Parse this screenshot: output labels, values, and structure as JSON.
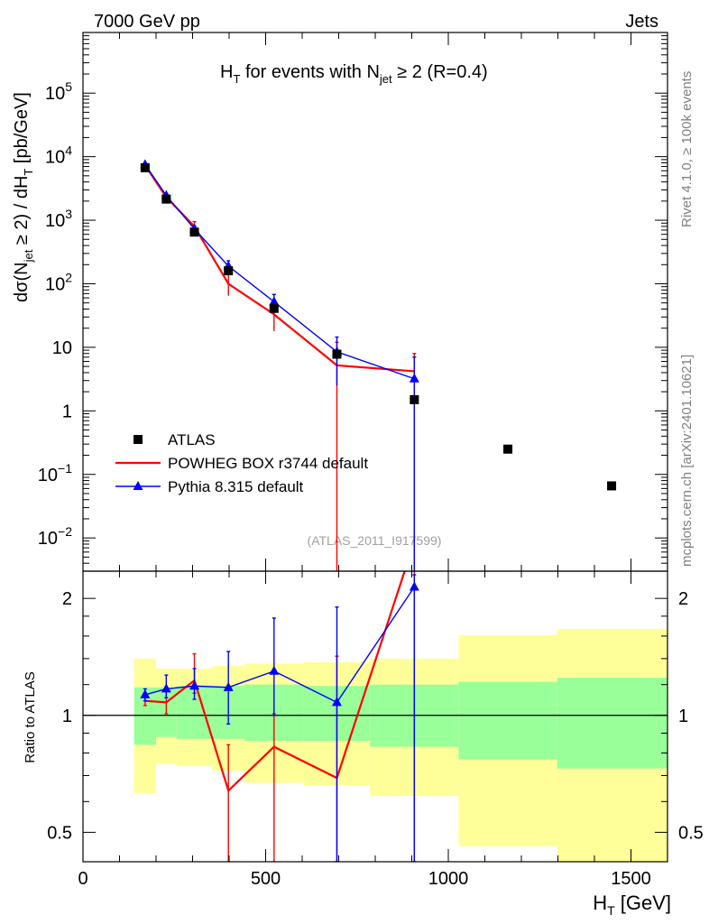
{
  "header": {
    "left_label": "7000 GeV pp",
    "right_label": "Jets"
  },
  "side_labels": {
    "rivet": "Rivet 4.1.0, ≥ 100k events",
    "mcplots": "mcplots.cern.ch [arXiv:2401.10621]"
  },
  "colors": {
    "atlas": "#000000",
    "powheg": "#ff0000",
    "pythia": "#0000ff",
    "band_inner": "#99ff99",
    "band_outer": "#ffff99",
    "analysis_label": "#a0a0a0"
  },
  "chart_data": [
    {
      "type": "scatter",
      "panel": "main",
      "title": "H_T for events with N_jet ≥ 2 (R=0.4)",
      "title_parts": {
        "h": "H",
        "t_sub": "T",
        "mid": " for events with N",
        "jet_sub": "jet",
        "tail": " ≥ 2 (R=0.4)"
      },
      "ylabel_parts": {
        "a": "dσ(N",
        "jet_sub": "jet",
        "b": " ≥ 2) / dH",
        "t_sub": "T",
        "c": " [pb/GeV]"
      },
      "analysis_label": "(ATLAS_2011_I917599)",
      "yscale": "log",
      "xlim": [
        0,
        1600
      ],
      "ylim": [
        0.003,
        900000
      ],
      "y_ticks": [
        {
          "value": 0.01,
          "base": "10",
          "exp": "−2"
        },
        {
          "value": 0.1,
          "base": "10",
          "exp": "−1"
        },
        {
          "value": 1,
          "base": "1",
          "exp": ""
        },
        {
          "value": 10,
          "base": "10",
          "exp": ""
        },
        {
          "value": 100,
          "base": "10",
          "exp": "2"
        },
        {
          "value": 1000,
          "base": "10",
          "exp": "3"
        },
        {
          "value": 10000,
          "base": "10",
          "exp": "4"
        },
        {
          "value": 100000,
          "base": "10",
          "exp": "5"
        }
      ],
      "legend": {
        "position": "bottom-left",
        "entries": [
          {
            "key": "atlas",
            "label": "ATLAS"
          },
          {
            "key": "powheg",
            "label": "POWHEG BOX r3744 default"
          },
          {
            "key": "pythia",
            "label": "Pythia 8.315 default"
          }
        ]
      },
      "series": [
        {
          "name": "ATLAS",
          "style": "markers",
          "x": [
            170,
            228,
            305,
            398,
            523,
            695,
            907,
            1163,
            1447
          ],
          "y": [
            6700,
            2150,
            650,
            160,
            41,
            7.8,
            1.5,
            0.25,
            0.066
          ]
        },
        {
          "name": "POWHEG BOX r3744 default",
          "style": "line",
          "x": [
            170,
            228,
            305,
            398,
            523,
            695,
            907
          ],
          "y": [
            7300,
            2300,
            800,
            100,
            33,
            5.2,
            4.2
          ],
          "err_low": [
            6800,
            2100,
            600,
            65,
            18,
            0.0001,
            0.0001
          ],
          "err_high": [
            7800,
            2600,
            950,
            150,
            48,
            12,
            8
          ]
        },
        {
          "name": "Pythia 8.315 default",
          "style": "line-markers",
          "x": [
            170,
            228,
            305,
            398,
            523,
            695,
            907
          ],
          "y": [
            7500,
            2450,
            730,
            190,
            52,
            8.5,
            3.2
          ],
          "err_low": [
            7100,
            2300,
            650,
            155,
            40,
            2.5,
            0.0001
          ],
          "err_high": [
            7900,
            2600,
            810,
            230,
            68,
            14.5,
            7
          ]
        }
      ]
    },
    {
      "type": "line",
      "panel": "ratio",
      "xlabel_parts": {
        "h": "H",
        "t_sub": "T",
        "tail": " [GeV]"
      },
      "ylabel": "Ratio to ATLAS",
      "yscale": "log",
      "xlim": [
        0,
        1600
      ],
      "ylim": [
        0.42,
        2.35
      ],
      "x_ticks": [
        0,
        500,
        1000,
        1500
      ],
      "y_ticks": [
        0.5,
        1,
        2
      ],
      "reference_line": 1,
      "bands": [
        {
          "x0": 140,
          "x1": 200,
          "inner_lo": 0.84,
          "inner_hi": 1.18,
          "outer_lo": 0.63,
          "outer_hi": 1.4
        },
        {
          "x0": 200,
          "x1": 256,
          "inner_lo": 0.88,
          "inner_hi": 1.18,
          "outer_lo": 0.75,
          "outer_hi": 1.32
        },
        {
          "x0": 256,
          "x1": 354,
          "inner_lo": 0.87,
          "inner_hi": 1.19,
          "outer_lo": 0.74,
          "outer_hi": 1.32
        },
        {
          "x0": 354,
          "x1": 442,
          "inner_lo": 0.87,
          "inner_hi": 1.19,
          "outer_lo": 0.72,
          "outer_hi": 1.34
        },
        {
          "x0": 442,
          "x1": 604,
          "inner_lo": 0.86,
          "inner_hi": 1.2,
          "outer_lo": 0.67,
          "outer_hi": 1.36
        },
        {
          "x0": 604,
          "x1": 786,
          "inner_lo": 0.86,
          "inner_hi": 1.19,
          "outer_lo": 0.66,
          "outer_hi": 1.37
        },
        {
          "x0": 786,
          "x1": 1028,
          "inner_lo": 0.83,
          "inner_hi": 1.2,
          "outer_lo": 0.62,
          "outer_hi": 1.4
        },
        {
          "x0": 1028,
          "x1": 1298,
          "inner_lo": 0.77,
          "inner_hi": 1.22,
          "outer_lo": 0.46,
          "outer_hi": 1.61
        },
        {
          "x0": 1298,
          "x1": 1600,
          "inner_lo": 0.73,
          "inner_hi": 1.25,
          "outer_lo": 0.38,
          "outer_hi": 1.67
        }
      ],
      "series": [
        {
          "name": "POWHEG BOX r3744 default",
          "x": [
            170,
            228,
            305,
            398,
            523,
            695,
            907
          ],
          "y": [
            1.09,
            1.08,
            1.23,
            0.64,
            0.83,
            0.69,
            2.8
          ],
          "err_low": [
            1.06,
            1.01,
            1.14,
            0.37,
            0.41,
            0.3,
            0.3
          ],
          "err_high": [
            1.12,
            1.17,
            1.44,
            0.84,
            1.01,
            1.42,
            2.8
          ]
        },
        {
          "name": "Pythia 8.315 default",
          "x": [
            170,
            228,
            305,
            398,
            523,
            695,
            907
          ],
          "y": [
            1.13,
            1.17,
            1.19,
            1.18,
            1.3,
            1.08,
            2.14
          ],
          "err_low": [
            1.09,
            1.11,
            1.1,
            0.95,
            1.0,
            0.3,
            0.3
          ],
          "err_high": [
            1.17,
            1.27,
            1.32,
            1.46,
            1.78,
            1.9,
            2.3
          ]
        }
      ]
    }
  ]
}
